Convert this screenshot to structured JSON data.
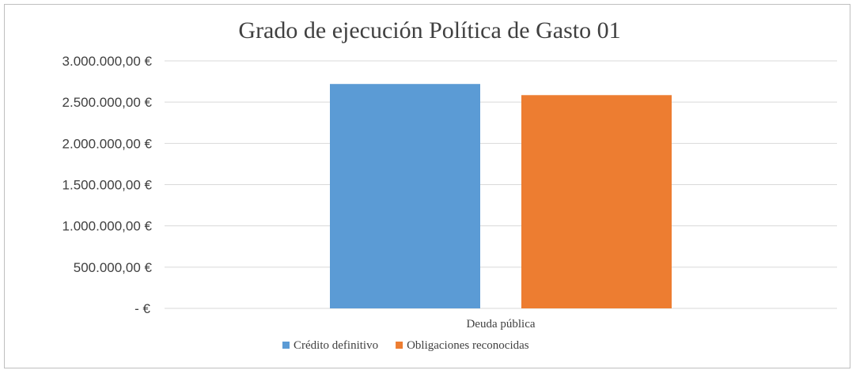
{
  "chart_data": {
    "type": "bar",
    "title": "Grado de ejecución Política de Gasto 01",
    "categories": [
      "Deuda pública"
    ],
    "series": [
      {
        "name": "Crédito definitivo",
        "values": [
          2720000
        ],
        "color": "#5b9bd5"
      },
      {
        "name": "Obligaciones reconocidas",
        "values": [
          2585000
        ],
        "color": "#ed7d31"
      }
    ],
    "ylim": [
      0,
      3000000
    ],
    "yticks": [
      0,
      500000,
      1000000,
      1500000,
      2000000,
      2500000,
      3000000
    ],
    "ytick_labels": [
      "-   €",
      "500.000,00 €",
      "1.000.000,00 €",
      "1.500.000,00 €",
      "2.000.000,00 €",
      "2.500.000,00 €",
      "3.000.000,00 €"
    ],
    "grid": true,
    "legend": "bottom"
  }
}
